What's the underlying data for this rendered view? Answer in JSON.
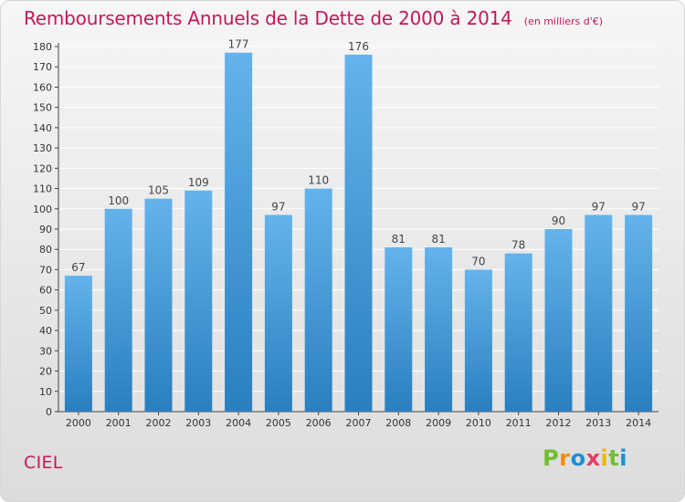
{
  "chart_data": {
    "type": "bar",
    "title": "Remboursements Annuels de la Dette de 2000 à 2014",
    "subtitle": "(en milliers d'€)",
    "categories": [
      "2000",
      "2001",
      "2002",
      "2003",
      "2004",
      "2005",
      "2006",
      "2007",
      "2008",
      "2009",
      "2010",
      "2011",
      "2012",
      "2013",
      "2014"
    ],
    "values": [
      67,
      100,
      105,
      109,
      177,
      97,
      110,
      176,
      81,
      81,
      70,
      78,
      90,
      97,
      97
    ],
    "ylim": [
      0,
      180
    ],
    "yticks": [
      0,
      10,
      20,
      30,
      40,
      50,
      60,
      70,
      80,
      90,
      100,
      110,
      120,
      130,
      140,
      150,
      160,
      170,
      180
    ],
    "grid": true,
    "colors": {
      "bar_top": "#64b3ea",
      "bar_bottom": "#2a7fc0",
      "title": "#c2185b",
      "grid": "#ffffff",
      "axis": "#444444"
    }
  },
  "footer": {
    "location": "CIEL",
    "brand": [
      "P",
      "r",
      "o",
      "x",
      "i",
      "t",
      "i"
    ],
    "brand_colors": [
      "#6fbf2f",
      "#f28c00",
      "#1a8fd8",
      "#e83a63",
      "#f2b705",
      "#6fbf2f",
      "#1a8fd8"
    ]
  }
}
